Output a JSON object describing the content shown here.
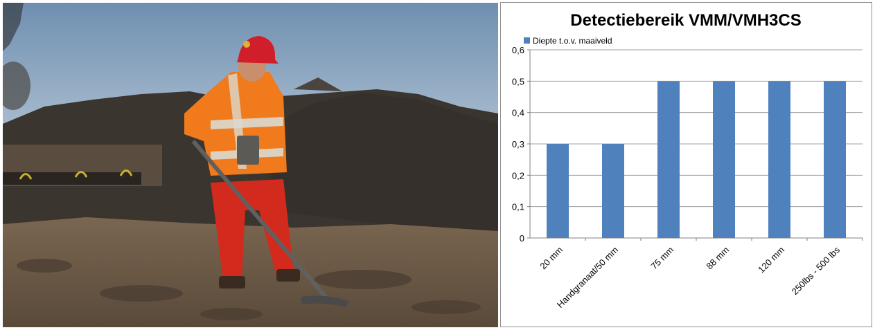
{
  "chart_data": {
    "type": "bar",
    "title": "Detectiebereik VMM/VMH3CS",
    "legend": {
      "position": "top-left",
      "label": "Diepte t.o.v. maaiveld"
    },
    "categories": [
      "20 mm",
      "Handgranaat/50 mm",
      "75 mm",
      "88 mm",
      "120 mm",
      "250lbs - 500 lbs"
    ],
    "series": [
      {
        "name": "Diepte t.o.v. maaiveld",
        "values": [
          0.3,
          0.3,
          0.5,
          0.5,
          0.5,
          0.5
        ]
      }
    ],
    "ylim": [
      0,
      0.6
    ],
    "yticks": [
      "0",
      "0,1",
      "0,2",
      "0,3",
      "0,4",
      "0,5",
      "0,6"
    ],
    "grid": true,
    "bar_color": "#4f81bd"
  },
  "photo": {
    "description_icon": "person-metal-detector-photo"
  }
}
